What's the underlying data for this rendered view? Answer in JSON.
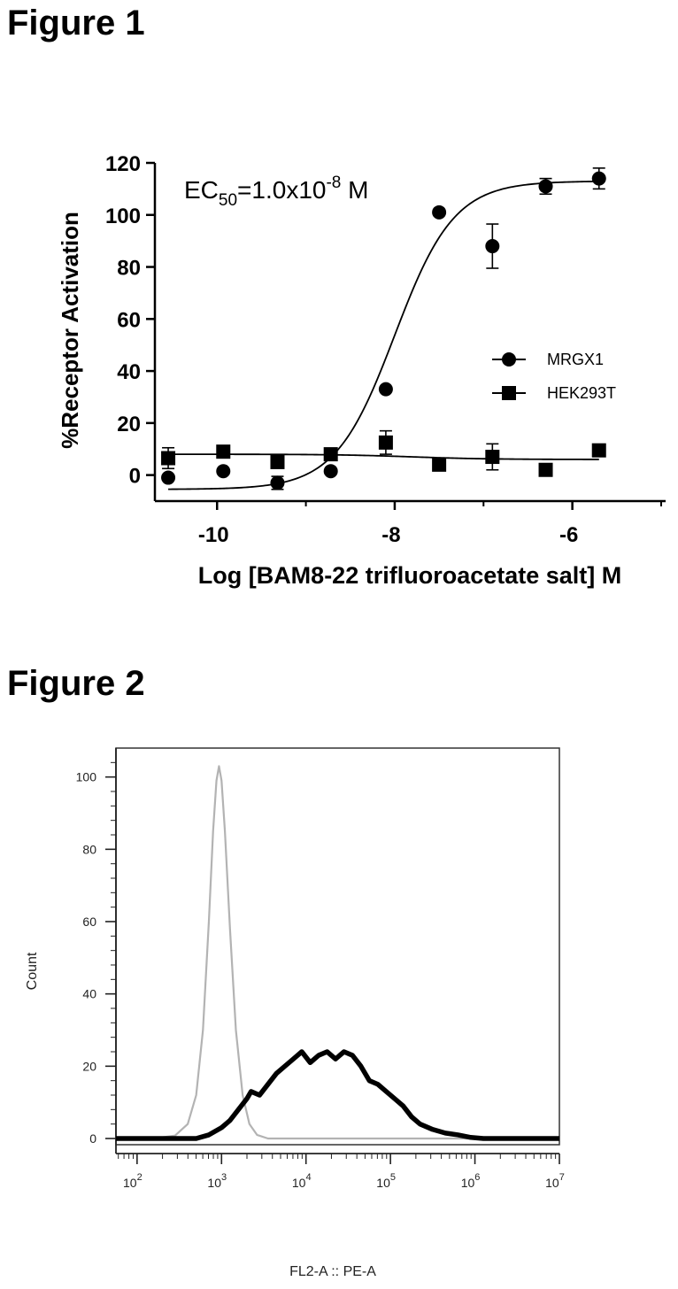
{
  "figures": [
    {
      "title": "Figure 1"
    },
    {
      "title": "Figure 2"
    }
  ],
  "colors": {
    "black": "#000000",
    "isotype_gray": "#b3b3b3"
  },
  "chart_data": [
    {
      "type": "scatter",
      "xlabel": "Log [BAM8-22 trifluoroacetate salt] M",
      "ylabel": "%Receptor Activation",
      "annotation": {
        "prefix": "EC",
        "sub": "50",
        "mid": "=1.0x10",
        "sup": "-8",
        "suffix": " M"
      },
      "xlim": [
        -10.7,
        -4.95
      ],
      "ylim": [
        -10,
        120
      ],
      "xticks": [
        -10,
        -8,
        -6
      ],
      "yticks": [
        0,
        20,
        40,
        60,
        80,
        100,
        120
      ],
      "legend_position": "right-middle",
      "series": [
        {
          "name": "MRGX1",
          "marker": "circle",
          "x": [
            -10.55,
            -9.93,
            -9.32,
            -8.72,
            -8.1,
            -7.5,
            -6.9,
            -6.3,
            -5.7
          ],
          "y": [
            -1,
            1.5,
            -3,
            1.5,
            33,
            101,
            88,
            111,
            114
          ],
          "err": [
            0,
            0,
            2.5,
            0,
            0,
            0,
            8.5,
            3,
            4
          ],
          "fit": {
            "bottom": -5.5,
            "top": 113,
            "logEC50": -8.0,
            "hill": 1.3
          }
        },
        {
          "name": "HEK293T",
          "marker": "square",
          "x": [
            -10.55,
            -9.93,
            -9.32,
            -8.72,
            -8.1,
            -7.5,
            -6.9,
            -6.3,
            -5.7
          ],
          "y": [
            6.5,
            9,
            5,
            8,
            12.5,
            4,
            7,
            2,
            9.5
          ],
          "err": [
            4,
            0,
            0,
            0,
            4.5,
            0,
            5,
            0,
            0
          ],
          "fit": {
            "bottom": 8,
            "top": 6,
            "logEC50": -7.8,
            "hill": 1.0
          }
        }
      ]
    },
    {
      "type": "line",
      "xlabel": "FL2-A :: PE-A",
      "ylabel": "Count",
      "xscale": "log",
      "xlim_log10": [
        1.75,
        7.0
      ],
      "ylim": [
        0,
        108
      ],
      "xticks": [
        {
          "base": "10",
          "exp": "2",
          "log": 2
        },
        {
          "base": "10",
          "exp": "3",
          "log": 3
        },
        {
          "base": "10",
          "exp": "4",
          "log": 4
        },
        {
          "base": "10",
          "exp": "5",
          "log": 5
        },
        {
          "base": "10",
          "exp": "6",
          "log": 6
        },
        {
          "base": "10",
          "exp": "7",
          "log": 7
        }
      ],
      "yticks": [
        0,
        20,
        40,
        60,
        80,
        100
      ],
      "series": [
        {
          "name": "",
          "style": "gray-thin",
          "points": [
            [
              1.75,
              0
            ],
            [
              2.2,
              0
            ],
            [
              2.45,
              0.8
            ],
            [
              2.6,
              4
            ],
            [
              2.7,
              12
            ],
            [
              2.78,
              30
            ],
            [
              2.85,
              60
            ],
            [
              2.9,
              85
            ],
            [
              2.94,
              99
            ],
            [
              2.97,
              103
            ],
            [
              3.0,
              99
            ],
            [
              3.04,
              85
            ],
            [
              3.1,
              58
            ],
            [
              3.17,
              30
            ],
            [
              3.25,
              12
            ],
            [
              3.33,
              4
            ],
            [
              3.42,
              1
            ],
            [
              3.55,
              0
            ],
            [
              7.0,
              0
            ]
          ]
        },
        {
          "name": "",
          "style": "black-thick",
          "points": [
            [
              1.75,
              0
            ],
            [
              2.7,
              0
            ],
            [
              2.85,
              1
            ],
            [
              3.0,
              3
            ],
            [
              3.1,
              5
            ],
            [
              3.2,
              8
            ],
            [
              3.3,
              11
            ],
            [
              3.35,
              13
            ],
            [
              3.45,
              12
            ],
            [
              3.55,
              15
            ],
            [
              3.65,
              18
            ],
            [
              3.75,
              20
            ],
            [
              3.85,
              22
            ],
            [
              3.95,
              24
            ],
            [
              4.05,
              21
            ],
            [
              4.15,
              23
            ],
            [
              4.25,
              24
            ],
            [
              4.35,
              22
            ],
            [
              4.45,
              24
            ],
            [
              4.55,
              23
            ],
            [
              4.65,
              20
            ],
            [
              4.75,
              16
            ],
            [
              4.85,
              15
            ],
            [
              4.95,
              13
            ],
            [
              5.05,
              11
            ],
            [
              5.15,
              9
            ],
            [
              5.25,
              6
            ],
            [
              5.35,
              4
            ],
            [
              5.5,
              2.5
            ],
            [
              5.65,
              1.5
            ],
            [
              5.8,
              1
            ],
            [
              5.95,
              0.3
            ],
            [
              6.1,
              0
            ],
            [
              7.0,
              0
            ]
          ]
        }
      ]
    }
  ]
}
